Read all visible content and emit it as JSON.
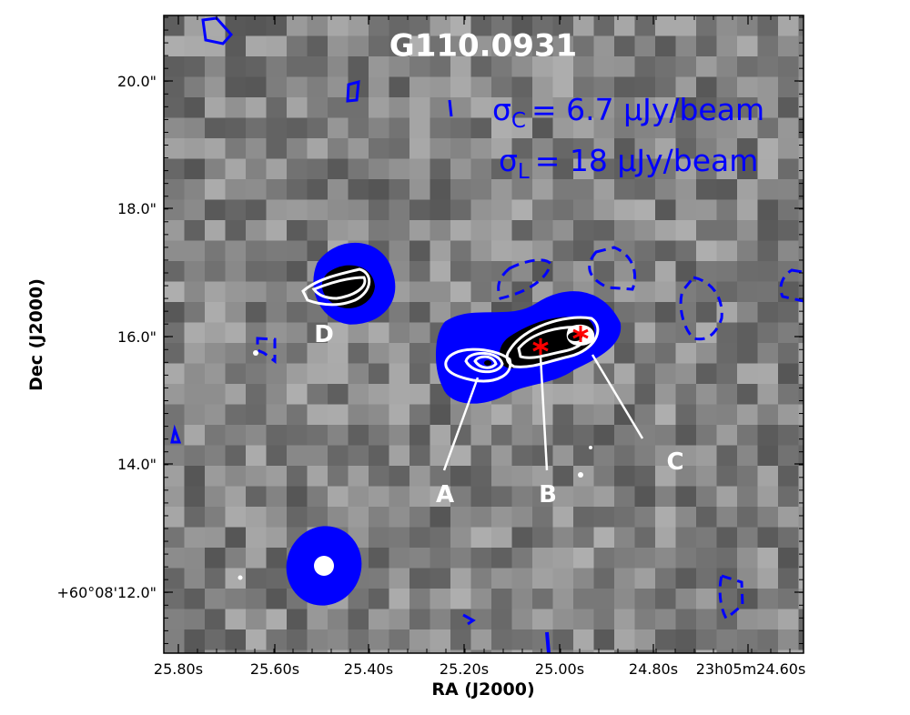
{
  "title": "G110.0931",
  "noise": [
    {
      "symbol": "σ",
      "sub": "C",
      "text": "= 6.7 μJy/beam"
    },
    {
      "symbol": "σ",
      "sub": "L",
      "text": "= 18 μJy/beam"
    }
  ],
  "x_axis": {
    "label": "RA (J2000)",
    "ticks": [
      "25.80s",
      "25.60s",
      "25.40s",
      "25.20s",
      "25.00s",
      "24.80s",
      "23h05m24.60s"
    ]
  },
  "y_axis": {
    "label": "Dec (J2000)",
    "ticks": [
      "20.0\"",
      "18.0\"",
      "16.0\"",
      "14.0\"",
      "+60°08'12.0\""
    ]
  },
  "sources": [
    "A",
    "B",
    "C",
    "D"
  ]
}
